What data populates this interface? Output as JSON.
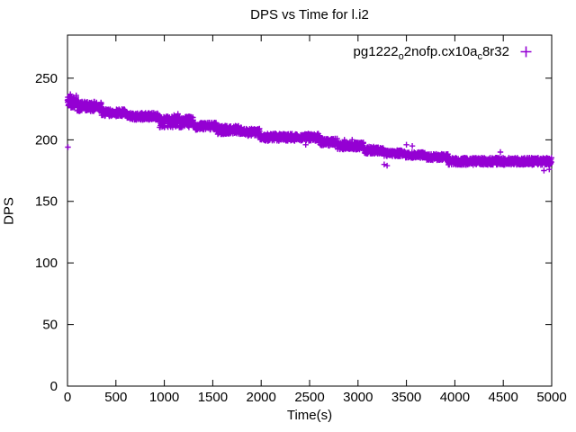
{
  "title": "DPS vs Time for l.i2",
  "legend": {
    "series_name": "pg1222_o2nofp.cx10a_c8r32",
    "parts": [
      {
        "text": "pg1222"
      },
      {
        "sub": "o"
      },
      {
        "text": "2nofp.cx10a"
      },
      {
        "sub": "c"
      },
      {
        "text": "8r32"
      }
    ],
    "marker_glyph": "plus",
    "marker_color": "#9400d3"
  },
  "chart_data": {
    "type": "scatter",
    "title": "DPS vs Time for l.i2",
    "xlabel": "Time(s)",
    "ylabel": "DPS",
    "xlim": [
      0,
      5000
    ],
    "ylim": [
      0,
      285
    ],
    "xticks": [
      0,
      500,
      1000,
      1500,
      2000,
      2500,
      3000,
      3500,
      4000,
      4500,
      5000
    ],
    "yticks": [
      0,
      50,
      100,
      150,
      200,
      250
    ],
    "grid": false,
    "legend_position": "top-right-inside",
    "marker": "+",
    "marker_color": "#9400d3",
    "axis_color": "#000000",
    "sample_interval_s": 2,
    "seed": 42,
    "trend_segments": [
      {
        "t0": 0,
        "t1": 100,
        "dps": 231,
        "spread": 5
      },
      {
        "t0": 100,
        "t1": 350,
        "dps": 227,
        "spread": 4
      },
      {
        "t0": 350,
        "t1": 600,
        "dps": 222,
        "spread": 3
      },
      {
        "t0": 600,
        "t1": 950,
        "dps": 219,
        "spread": 3
      },
      {
        "t0": 950,
        "t1": 1300,
        "dps": 214.5,
        "spread": 4.5
      },
      {
        "t0": 1300,
        "t1": 1550,
        "dps": 211,
        "spread": 3
      },
      {
        "t0": 1550,
        "t1": 1800,
        "dps": 208,
        "spread": 3.5
      },
      {
        "t0": 1800,
        "t1": 1990,
        "dps": 206,
        "spread": 3
      },
      {
        "t0": 1990,
        "t1": 2610,
        "dps": 202,
        "spread": 3
      },
      {
        "t0": 2610,
        "t1": 2790,
        "dps": 198,
        "spread": 3
      },
      {
        "t0": 2790,
        "t1": 3060,
        "dps": 195,
        "spread": 3
      },
      {
        "t0": 3060,
        "t1": 3270,
        "dps": 191.5,
        "spread": 3
      },
      {
        "t0": 3270,
        "t1": 3490,
        "dps": 189,
        "spread": 2.5
      },
      {
        "t0": 3490,
        "t1": 3710,
        "dps": 187.5,
        "spread": 2.5
      },
      {
        "t0": 3710,
        "t1": 3930,
        "dps": 186,
        "spread": 2.5
      },
      {
        "t0": 3930,
        "t1": 5000,
        "dps": 182.5,
        "spread": 3
      }
    ],
    "outliers": [
      [
        5,
        194
      ],
      [
        30,
        237
      ],
      [
        90,
        236
      ],
      [
        930,
        220
      ],
      [
        1100,
        220
      ],
      [
        1140,
        221
      ],
      [
        1450,
        214
      ],
      [
        1520,
        214
      ],
      [
        1900,
        209
      ],
      [
        2460,
        196
      ],
      [
        2860,
        200
      ],
      [
        2940,
        200
      ],
      [
        3270,
        180
      ],
      [
        3300,
        179
      ],
      [
        3500,
        196
      ],
      [
        3560,
        195
      ],
      [
        4470,
        190
      ],
      [
        4920,
        175
      ],
      [
        4975,
        176
      ]
    ]
  }
}
